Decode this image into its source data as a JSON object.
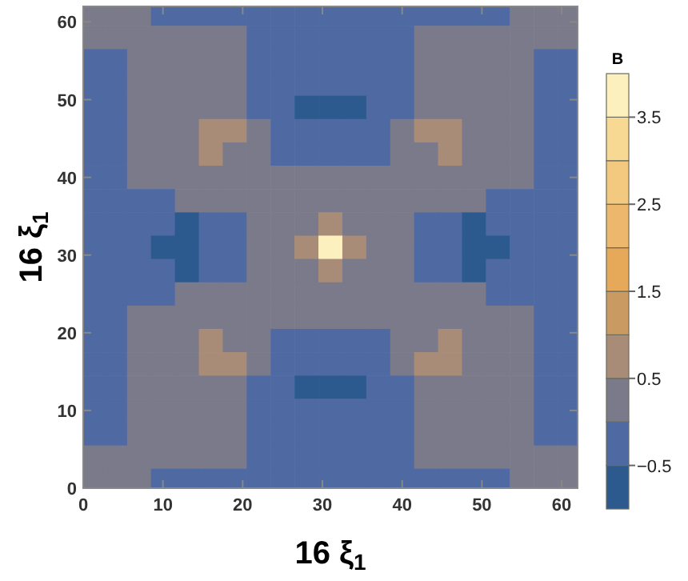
{
  "chart_data": {
    "type": "heatmap",
    "xlabel": "16 ξ$_{1}$",
    "ylabel": "16 ξ$_{1}$",
    "clabel": "B",
    "x": [
      1,
      4,
      7,
      10,
      13,
      16,
      19,
      22,
      25,
      28,
      31,
      34,
      37,
      40,
      43,
      46,
      49,
      52,
      55,
      58,
      61
    ],
    "y": [
      61,
      58,
      55,
      52,
      49,
      46,
      43,
      40,
      37,
      34,
      31,
      28,
      25,
      22,
      19,
      16,
      13,
      10,
      7,
      4,
      1
    ],
    "xlim": [
      0,
      62
    ],
    "ylim": [
      0,
      62
    ],
    "xticks": [
      0,
      10,
      20,
      30,
      40,
      50,
      60
    ],
    "yticks": [
      0,
      10,
      20,
      30,
      40,
      50,
      60
    ],
    "clim": [
      -1,
      4
    ],
    "cticks": [
      -0.5,
      0.5,
      1.5,
      2.5,
      3.5
    ],
    "colors": [
      "#2d5a8e",
      "#4f69a3",
      "#7b7a8a",
      "#a88c78",
      "#c99a62",
      "#e6a95a",
      "#edb86e",
      "#f3c97f",
      "#f8d994",
      "#fdf0bf"
    ],
    "cells": [
      [
        0.25,
        0.25,
        0.25,
        -0.25,
        -0.25,
        -0.25,
        -0.25,
        -0.25,
        -0.25,
        -0.25,
        -0.25,
        -0.25,
        -0.25,
        -0.25,
        -0.25,
        -0.25,
        -0.25,
        -0.25,
        0.25,
        0.25,
        0.25
      ],
      [
        0.25,
        0.25,
        0.25,
        0.25,
        0.25,
        0.25,
        0.25,
        -0.25,
        -0.25,
        -0.25,
        -0.25,
        -0.25,
        -0.25,
        -0.25,
        0.25,
        0.25,
        0.25,
        0.25,
        0.25,
        0.25,
        0.25
      ],
      [
        -0.25,
        -0.25,
        0.25,
        0.25,
        0.25,
        0.25,
        0.25,
        -0.25,
        -0.25,
        -0.25,
        -0.25,
        -0.25,
        -0.25,
        -0.25,
        0.25,
        0.25,
        0.25,
        0.25,
        0.25,
        -0.25,
        -0.25
      ],
      [
        -0.25,
        -0.25,
        0.25,
        0.25,
        0.25,
        0.25,
        0.25,
        -0.25,
        -0.25,
        -0.25,
        -0.25,
        -0.25,
        -0.25,
        -0.25,
        0.25,
        0.25,
        0.25,
        0.25,
        0.25,
        -0.25,
        -0.25
      ],
      [
        -0.25,
        -0.25,
        0.25,
        0.25,
        0.25,
        0.25,
        0.25,
        -0.25,
        -0.25,
        -0.75,
        -0.75,
        -0.75,
        -0.25,
        -0.25,
        0.25,
        0.25,
        0.25,
        0.25,
        0.25,
        -0.25,
        -0.25
      ],
      [
        -0.25,
        -0.25,
        0.25,
        0.25,
        0.25,
        0.75,
        0.75,
        0.25,
        -0.25,
        -0.25,
        -0.25,
        -0.25,
        -0.25,
        0.25,
        0.75,
        0.75,
        0.25,
        0.25,
        0.25,
        -0.25,
        -0.25
      ],
      [
        -0.25,
        -0.25,
        0.25,
        0.25,
        0.25,
        0.75,
        0.25,
        0.25,
        -0.25,
        -0.25,
        -0.25,
        -0.25,
        -0.25,
        0.25,
        0.25,
        0.75,
        0.25,
        0.25,
        0.25,
        -0.25,
        -0.25
      ],
      [
        -0.25,
        -0.25,
        0.25,
        0.25,
        0.25,
        0.25,
        0.25,
        0.25,
        0.25,
        0.25,
        0.25,
        0.25,
        0.25,
        0.25,
        0.25,
        0.25,
        0.25,
        0.25,
        0.25,
        -0.25,
        -0.25
      ],
      [
        -0.25,
        -0.25,
        -0.25,
        -0.25,
        0.25,
        0.25,
        0.25,
        0.25,
        0.25,
        0.25,
        0.25,
        0.25,
        0.25,
        0.25,
        0.25,
        0.25,
        0.25,
        -0.25,
        -0.25,
        -0.25,
        -0.25
      ],
      [
        -0.25,
        -0.25,
        -0.25,
        -0.25,
        -0.75,
        -0.25,
        -0.25,
        0.25,
        0.25,
        0.25,
        0.75,
        0.25,
        0.25,
        0.25,
        -0.25,
        -0.25,
        -0.75,
        -0.25,
        -0.25,
        -0.25,
        -0.25
      ],
      [
        -0.25,
        -0.25,
        -0.25,
        -0.75,
        -0.75,
        -0.25,
        -0.25,
        0.25,
        0.25,
        0.75,
        3.75,
        0.75,
        0.25,
        0.25,
        -0.25,
        -0.25,
        -0.75,
        -0.75,
        -0.25,
        -0.25,
        -0.25
      ],
      [
        -0.25,
        -0.25,
        -0.25,
        -0.25,
        -0.75,
        -0.25,
        -0.25,
        0.25,
        0.25,
        0.25,
        0.75,
        0.25,
        0.25,
        0.25,
        -0.25,
        -0.25,
        -0.75,
        -0.25,
        -0.25,
        -0.25,
        -0.25
      ],
      [
        -0.25,
        -0.25,
        -0.25,
        -0.25,
        0.25,
        0.25,
        0.25,
        0.25,
        0.25,
        0.25,
        0.25,
        0.25,
        0.25,
        0.25,
        0.25,
        0.25,
        0.25,
        -0.25,
        -0.25,
        -0.25,
        -0.25
      ],
      [
        -0.25,
        -0.25,
        0.25,
        0.25,
        0.25,
        0.25,
        0.25,
        0.25,
        0.25,
        0.25,
        0.25,
        0.25,
        0.25,
        0.25,
        0.25,
        0.25,
        0.25,
        0.25,
        0.25,
        -0.25,
        -0.25
      ],
      [
        -0.25,
        -0.25,
        0.25,
        0.25,
        0.25,
        0.75,
        0.25,
        0.25,
        -0.25,
        -0.25,
        -0.25,
        -0.25,
        -0.25,
        0.25,
        0.25,
        0.75,
        0.25,
        0.25,
        0.25,
        -0.25,
        -0.25
      ],
      [
        -0.25,
        -0.25,
        0.25,
        0.25,
        0.25,
        0.75,
        0.75,
        0.25,
        -0.25,
        -0.25,
        -0.25,
        -0.25,
        -0.25,
        0.25,
        0.75,
        0.75,
        0.25,
        0.25,
        0.25,
        -0.25,
        -0.25
      ],
      [
        -0.25,
        -0.25,
        0.25,
        0.25,
        0.25,
        0.25,
        0.25,
        -0.25,
        -0.25,
        -0.75,
        -0.75,
        -0.75,
        -0.25,
        -0.25,
        0.25,
        0.25,
        0.25,
        0.25,
        0.25,
        -0.25,
        -0.25
      ],
      [
        -0.25,
        -0.25,
        0.25,
        0.25,
        0.25,
        0.25,
        0.25,
        -0.25,
        -0.25,
        -0.25,
        -0.25,
        -0.25,
        -0.25,
        -0.25,
        0.25,
        0.25,
        0.25,
        0.25,
        0.25,
        -0.25,
        -0.25
      ],
      [
        -0.25,
        -0.25,
        0.25,
        0.25,
        0.25,
        0.25,
        0.25,
        -0.25,
        -0.25,
        -0.25,
        -0.25,
        -0.25,
        -0.25,
        -0.25,
        0.25,
        0.25,
        0.25,
        0.25,
        0.25,
        -0.25,
        -0.25
      ],
      [
        0.25,
        0.25,
        0.25,
        0.25,
        0.25,
        0.25,
        0.25,
        -0.25,
        -0.25,
        -0.25,
        -0.25,
        -0.25,
        -0.25,
        -0.25,
        0.25,
        0.25,
        0.25,
        0.25,
        0.25,
        0.25,
        0.25
      ],
      [
        0.25,
        0.25,
        0.25,
        -0.25,
        -0.25,
        -0.25,
        -0.25,
        -0.25,
        -0.25,
        -0.25,
        -0.25,
        -0.25,
        -0.25,
        -0.25,
        -0.25,
        -0.25,
        -0.25,
        -0.25,
        0.25,
        0.25,
        0.25
      ]
    ]
  }
}
